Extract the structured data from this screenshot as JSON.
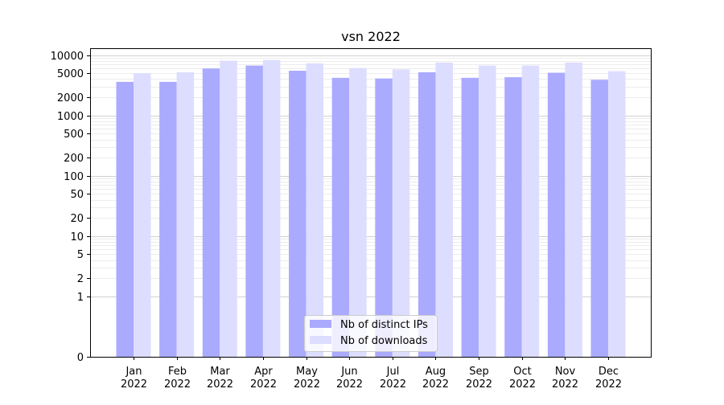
{
  "chart_data": {
    "type": "bar",
    "title": "vsn 2022",
    "xlabel": "",
    "ylabel": "",
    "yscale": "symlog",
    "ylim": [
      0,
      13000
    ],
    "grid": "horizontal, major and minor",
    "legend_position": "bottom-center",
    "categories": [
      [
        "Jan",
        "2022"
      ],
      [
        "Feb",
        "2022"
      ],
      [
        "Mar",
        "2022"
      ],
      [
        "Apr",
        "2022"
      ],
      [
        "May",
        "2022"
      ],
      [
        "Jun",
        "2022"
      ],
      [
        "Jul",
        "2022"
      ],
      [
        "Aug",
        "2022"
      ],
      [
        "Sep",
        "2022"
      ],
      [
        "Oct",
        "2022"
      ],
      [
        "Nov",
        "2022"
      ],
      [
        "Dec",
        "2022"
      ]
    ],
    "y_ticks": [
      0,
      1,
      2,
      5,
      10,
      20,
      50,
      100,
      200,
      500,
      1000,
      2000,
      5000,
      10000
    ],
    "series": [
      {
        "name": "Nb of distinct IPs",
        "color": "#aaaaff",
        "values": [
          3600,
          3600,
          6000,
          6700,
          5500,
          4200,
          4100,
          5200,
          4200,
          4300,
          5100,
          3900
        ]
      },
      {
        "name": "Nb of downloads",
        "color": "#ddddff",
        "values": [
          5000,
          5200,
          8100,
          8300,
          7300,
          6100,
          5800,
          7500,
          6700,
          6700,
          7500,
          5400
        ]
      }
    ]
  }
}
